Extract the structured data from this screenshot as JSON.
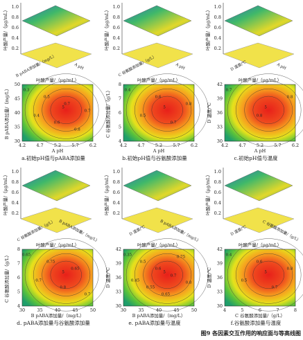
{
  "figure_caption": "图9 各因素交互作用的响应面与等高线图",
  "panels": [
    {
      "caption": "a.初始pH值与pABA添加量",
      "surface": {
        "z_label": "叶酸产量/（μg/mL）",
        "x_label": "A pH",
        "y_label": "B pABA添加量/（mg/L）",
        "z_ticks": [
          "0.2",
          "0.4",
          "0.6",
          "0.8",
          "1.0"
        ]
      },
      "contour": {
        "title": "叶酸产量/（μg/mL）",
        "x_label": "A pH",
        "y_label": "B pABA添加量/（mg/L）",
        "x_ticks": [
          "4.2",
          "4.7",
          "5.2",
          "5.7",
          "6.2"
        ],
        "y_ticks": [
          "30",
          "35",
          "40",
          "45",
          "50"
        ],
        "levels": [
          "0.3",
          "0.4",
          "0.5",
          "0.6",
          "0.7",
          "0.8",
          "0.7"
        ],
        "point": "5"
      }
    },
    {
      "caption": "b.初始pH值与谷氨酸添加量",
      "surface": {
        "z_label": "叶酸产量/（μg/mL）",
        "x_label": "A pH",
        "y_label": "C 谷氨酸添加量/（g/L）",
        "z_ticks": [
          "0.2",
          "0.4",
          "0.6",
          "0.8",
          "1.0"
        ]
      },
      "contour": {
        "title": "叶酸产量/（μg/mL）",
        "x_label": "A pH",
        "y_label": "C 谷氨酸添加量/（g/L）",
        "x_ticks": [
          "4.2",
          "4.7",
          "5.2",
          "5.7",
          "6.2"
        ],
        "y_ticks": [
          "4",
          "5",
          "6",
          "7",
          "8"
        ],
        "levels": [
          "0.4",
          "0.5",
          "0.6",
          "0.7",
          "0.8"
        ],
        "point": "5"
      }
    },
    {
      "caption": "c.初始pH值与温度",
      "surface": {
        "z_label": "叶酸产量/（μg/mL）",
        "x_label": "A pH",
        "y_label": "D 温度/℃",
        "z_ticks": [
          "0.2",
          "0.4",
          "0.6",
          "0.8",
          "1.0"
        ]
      },
      "contour": {
        "title": "叶酸产量/（μg/mL）",
        "x_label": "A pH",
        "y_label": "D 温度/℃",
        "x_ticks": [
          "4.2",
          "4.7",
          "5.2",
          "5.7",
          "6.2"
        ],
        "y_ticks": [
          "30",
          "33",
          "36",
          "39",
          "42"
        ],
        "levels": [
          "0.7",
          "0.8",
          "0.8"
        ],
        "point": "5"
      }
    },
    {
      "caption": "d. pABA添加量与谷氨酸添加量",
      "surface": {
        "z_label": "叶酸产量/（μg/mL）",
        "x_label": "B pABA添加量/（mg/L）",
        "y_label": "C 谷氨酸添加量/（g/L）",
        "z_ticks": [
          "0.2",
          "0.4",
          "0.6",
          "0.8",
          "1.0"
        ]
      },
      "contour": {
        "title": "叶酸产量/（μg/mL）",
        "x_label": "B pABA添加量/（mg/L）",
        "y_label": "C 谷氨酸添加量/（g/L）",
        "x_ticks": [
          "30",
          "35",
          "40",
          "45",
          "50"
        ],
        "y_ticks": [
          "4",
          "5",
          "6",
          "7",
          "8"
        ],
        "levels": [
          "0.65",
          "0.7",
          "0.75",
          "0.8",
          "0.65",
          "0.7"
        ],
        "point": "5"
      }
    },
    {
      "caption": "e. pABA添加量与温度",
      "surface": {
        "z_label": "叶酸产量/（μg/mL）",
        "x_label": "B pABA添加量/（mg/L）",
        "y_label": "D 温度/℃",
        "z_ticks": [
          "0.2",
          "0.4",
          "0.6",
          "0.8",
          "1.0"
        ]
      },
      "contour": {
        "title": "叶酸产量/（μg/mL）",
        "x_label": "B pABA添加量/（mg/L）",
        "y_label": "D 温度/℃",
        "x_ticks": [
          "30",
          "35",
          "40",
          "45",
          "50"
        ],
        "y_ticks": [
          "30",
          "33",
          "36",
          "39",
          "42"
        ],
        "levels": [
          "0.35",
          "0.45",
          "0.5",
          "0.55",
          "0.6",
          "0.65",
          "0.7",
          "0.75",
          "0.8"
        ],
        "point": "5"
      }
    },
    {
      "caption": "f.谷氨酸添加量与温度",
      "surface": {
        "z_label": "叶酸产量/（μg/mL）",
        "x_label": "C 谷氨酸添加量/（g/L）",
        "y_label": "D 温度/℃",
        "z_ticks": [
          "0.2",
          "0.4",
          "0.6",
          "0.8",
          "1.0"
        ]
      },
      "contour": {
        "title": "叶酸产量/（μg/mL）",
        "x_label": "C 谷氨酸添加量/（g/L）",
        "y_label": "D 温度/℃",
        "x_ticks": [
          "4",
          "5",
          "6",
          "7",
          "8"
        ],
        "y_ticks": [
          "30",
          "33",
          "36",
          "39",
          "42"
        ],
        "levels": [
          "0.4",
          "0.5",
          "0.6",
          "0.7",
          "0.8"
        ],
        "point": "5"
      }
    }
  ]
}
